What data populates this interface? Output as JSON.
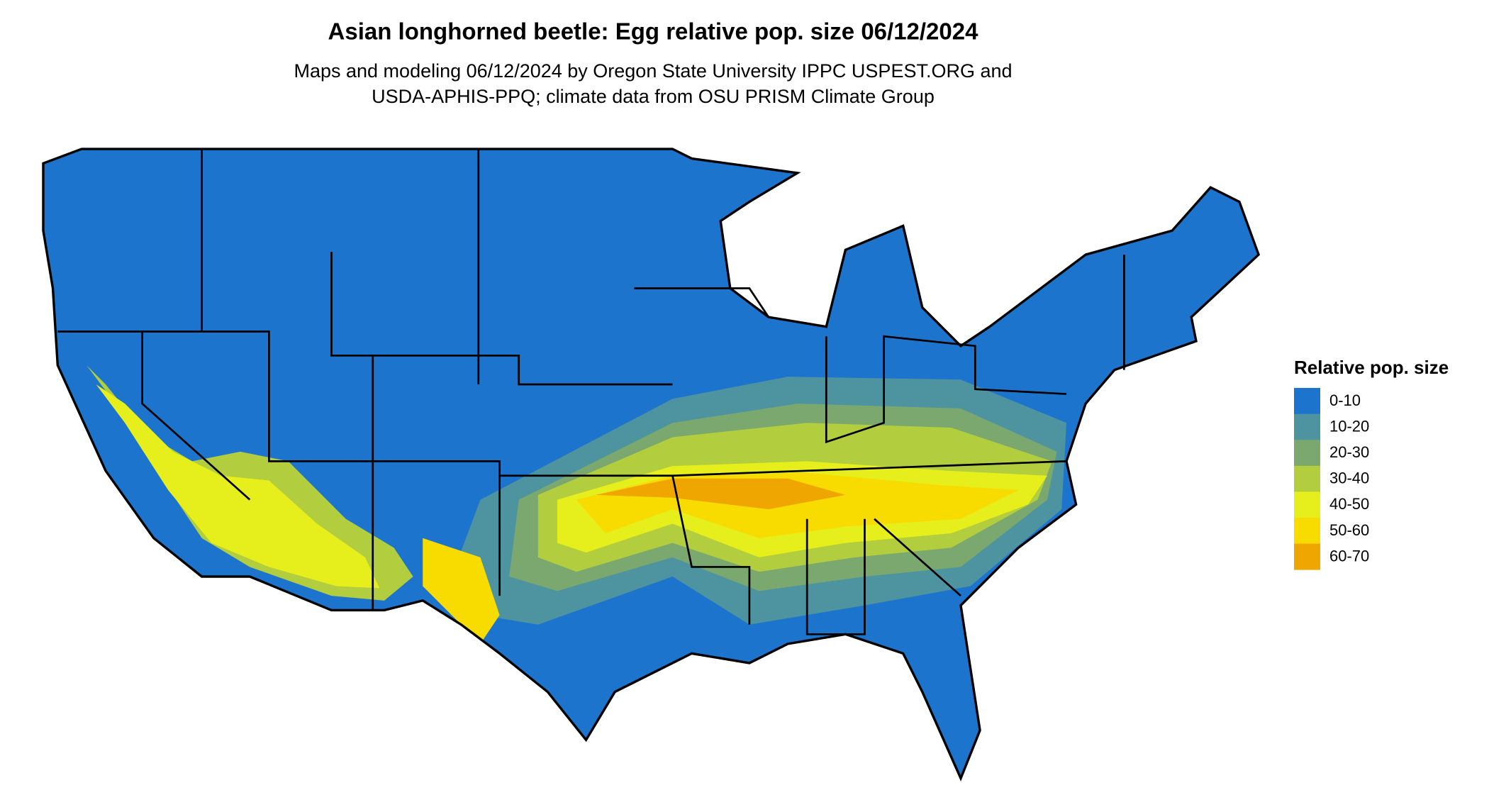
{
  "title": "Asian longhorned beetle: Egg relative pop. size 06/12/2024",
  "subtitle": [
    "Maps and modeling 06/12/2024 by Oregon State University IPPC USPEST.ORG and",
    "USDA-APHIS-PPQ; climate data from OSU PRISM Climate Group"
  ],
  "legend": {
    "title": "Relative pop. size",
    "items": [
      {
        "label": "0-10",
        "color": "#1c74cd"
      },
      {
        "label": "10-20",
        "color": "#4d93a0"
      },
      {
        "label": "20-30",
        "color": "#7aa86e"
      },
      {
        "label": "30-40",
        "color": "#b2cd3e"
      },
      {
        "label": "40-50",
        "color": "#e6ee1c"
      },
      {
        "label": "50-60",
        "color": "#f8dc00"
      },
      {
        "label": "60-70",
        "color": "#efa700"
      }
    ]
  }
}
